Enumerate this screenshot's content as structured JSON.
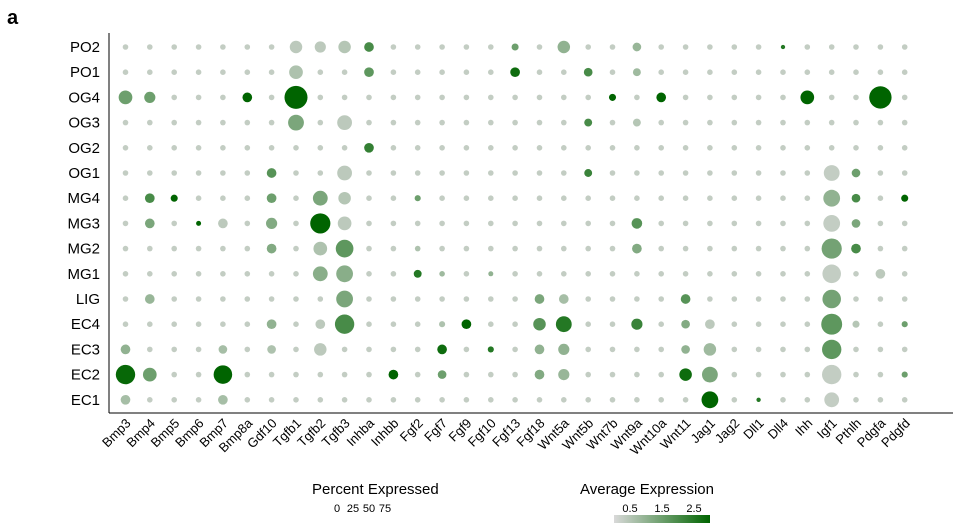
{
  "panel_letter": "a",
  "chart_data": {
    "type": "scatter",
    "kind": "dot-plot",
    "rows": [
      "PO2",
      "PO1",
      "OG4",
      "OG3",
      "OG2",
      "OG1",
      "MG4",
      "MG3",
      "MG2",
      "MG1",
      "LIG",
      "EC4",
      "EC3",
      "EC2",
      "EC1"
    ],
    "columns": [
      "Bmp3",
      "Bmp4",
      "Bmp5",
      "Bmp6",
      "Bmp7",
      "Bmp8a",
      "Gdf10",
      "Tgfb1",
      "Tgfb2",
      "Tgfb3",
      "Inhba",
      "Inhbb",
      "Fgf2",
      "Fgf7",
      "Fgf9",
      "Fgf10",
      "Fgf13",
      "Fgf18",
      "Wnt5a",
      "Wnt5b",
      "Wnt7b",
      "Wnt9a",
      "Wnt10a",
      "Wnt11",
      "Jag1",
      "Jag2",
      "Dll1",
      "Dll4",
      "Ihh",
      "Igf1",
      "Pthlh",
      "Pdgfa",
      "Pdgfd"
    ],
    "size_legend": {
      "title": "Percent Expressed",
      "ticks": [
        0,
        25,
        50,
        75
      ],
      "max": 100
    },
    "color_legend": {
      "title": "Average Expression",
      "ticks": [
        0.5,
        1.5,
        2.5
      ],
      "range": [
        0,
        3
      ],
      "low_color": "#d9d9d9",
      "high_color": "#006400"
    },
    "default_point": {
      "pct": 5,
      "avg": 0.3
    },
    "points": [
      {
        "row": "PO2",
        "col": "Tgfb1",
        "pct": 25,
        "avg": 0.4
      },
      {
        "row": "PO2",
        "col": "Tgfb2",
        "pct": 20,
        "avg": 0.4
      },
      {
        "row": "PO2",
        "col": "Tgfb3",
        "pct": 25,
        "avg": 0.5
      },
      {
        "row": "PO2",
        "col": "Inhba",
        "pct": 15,
        "avg": 2.0
      },
      {
        "row": "PO2",
        "col": "Fgf13",
        "pct": 8,
        "avg": 1.5
      },
      {
        "row": "PO2",
        "col": "Wnt5a",
        "pct": 25,
        "avg": 1.0
      },
      {
        "row": "PO2",
        "col": "Wnt9a",
        "pct": 12,
        "avg": 0.9
      },
      {
        "row": "PO2",
        "col": "Dll4",
        "pct": 3,
        "avg": 2.5
      },
      {
        "row": "PO1",
        "col": "Tgfb1",
        "pct": 30,
        "avg": 0.6
      },
      {
        "row": "PO1",
        "col": "Inhba",
        "pct": 15,
        "avg": 1.7
      },
      {
        "row": "PO1",
        "col": "Fgf13",
        "pct": 15,
        "avg": 2.8
      },
      {
        "row": "PO1",
        "col": "Wnt5b",
        "pct": 12,
        "avg": 2.0
      },
      {
        "row": "PO1",
        "col": "Wnt9a",
        "pct": 10,
        "avg": 0.8
      },
      {
        "row": "OG4",
        "col": "Bmp3",
        "pct": 30,
        "avg": 1.5
      },
      {
        "row": "OG4",
        "col": "Bmp4",
        "pct": 20,
        "avg": 1.5
      },
      {
        "row": "OG4",
        "col": "Bmp8a",
        "pct": 15,
        "avg": 3.0
      },
      {
        "row": "OG4",
        "col": "Tgfb1",
        "pct": 85,
        "avg": 3.0
      },
      {
        "row": "OG4",
        "col": "Wnt7b",
        "pct": 8,
        "avg": 3.0
      },
      {
        "row": "OG4",
        "col": "Wnt10a",
        "pct": 15,
        "avg": 3.0
      },
      {
        "row": "OG4",
        "col": "Ihh",
        "pct": 30,
        "avg": 3.0
      },
      {
        "row": "OG4",
        "col": "Pdgfa",
        "pct": 80,
        "avg": 3.0
      },
      {
        "row": "OG3",
        "col": "Tgfb1",
        "pct": 40,
        "avg": 1.3
      },
      {
        "row": "OG3",
        "col": "Tgfb3",
        "pct": 35,
        "avg": 0.4
      },
      {
        "row": "OG3",
        "col": "Wnt5b",
        "pct": 10,
        "avg": 2.0
      },
      {
        "row": "OG3",
        "col": "Wnt9a",
        "pct": 10,
        "avg": 0.5
      },
      {
        "row": "OG2",
        "col": "Inhba",
        "pct": 15,
        "avg": 2.3
      },
      {
        "row": "OG1",
        "col": "Gdf10",
        "pct": 15,
        "avg": 1.8
      },
      {
        "row": "OG1",
        "col": "Tgfb3",
        "pct": 35,
        "avg": 0.4
      },
      {
        "row": "OG1",
        "col": "Wnt5b",
        "pct": 10,
        "avg": 2.2
      },
      {
        "row": "OG1",
        "col": "Igf1",
        "pct": 40,
        "avg": 0.3
      },
      {
        "row": "OG1",
        "col": "Pthlh",
        "pct": 12,
        "avg": 1.5
      },
      {
        "row": "MG4",
        "col": "Bmp4",
        "pct": 15,
        "avg": 2.0
      },
      {
        "row": "MG4",
        "col": "Bmp5",
        "pct": 8,
        "avg": 3.0
      },
      {
        "row": "MG4",
        "col": "Gdf10",
        "pct": 15,
        "avg": 1.5
      },
      {
        "row": "MG4",
        "col": "Tgfb2",
        "pct": 35,
        "avg": 1.3
      },
      {
        "row": "MG4",
        "col": "Tgfb3",
        "pct": 25,
        "avg": 0.5
      },
      {
        "row": "MG4",
        "col": "Fgf2",
        "pct": 6,
        "avg": 1.5
      },
      {
        "row": "MG4",
        "col": "Igf1",
        "pct": 45,
        "avg": 1.0
      },
      {
        "row": "MG4",
        "col": "Pthlh",
        "pct": 12,
        "avg": 2.0
      },
      {
        "row": "MG4",
        "col": "Pdgfd",
        "pct": 8,
        "avg": 3.0
      },
      {
        "row": "MG3",
        "col": "Bmp4",
        "pct": 15,
        "avg": 1.3
      },
      {
        "row": "MG3",
        "col": "Bmp6",
        "pct": 4,
        "avg": 3.0
      },
      {
        "row": "MG3",
        "col": "Bmp7",
        "pct": 15,
        "avg": 0.4
      },
      {
        "row": "MG3",
        "col": "Gdf10",
        "pct": 20,
        "avg": 1.2
      },
      {
        "row": "MG3",
        "col": "Tgfb2",
        "pct": 65,
        "avg": 3.0
      },
      {
        "row": "MG3",
        "col": "Tgfb3",
        "pct": 30,
        "avg": 0.4
      },
      {
        "row": "MG3",
        "col": "Wnt9a",
        "pct": 18,
        "avg": 1.8
      },
      {
        "row": "MG3",
        "col": "Igf1",
        "pct": 45,
        "avg": 0.3
      },
      {
        "row": "MG3",
        "col": "Pthlh",
        "pct": 12,
        "avg": 1.3
      },
      {
        "row": "MG2",
        "col": "Gdf10",
        "pct": 15,
        "avg": 1.2
      },
      {
        "row": "MG2",
        "col": "Tgfb2",
        "pct": 30,
        "avg": 0.6
      },
      {
        "row": "MG2",
        "col": "Tgfb3",
        "pct": 50,
        "avg": 1.7
      },
      {
        "row": "MG2",
        "col": "Fgf2",
        "pct": 5,
        "avg": 0.6
      },
      {
        "row": "MG2",
        "col": "Wnt9a",
        "pct": 15,
        "avg": 1.2
      },
      {
        "row": "MG2",
        "col": "Igf1",
        "pct": 65,
        "avg": 1.4
      },
      {
        "row": "MG2",
        "col": "Pthlh",
        "pct": 15,
        "avg": 2.0
      },
      {
        "row": "MG1",
        "col": "Tgfb2",
        "pct": 35,
        "avg": 1.1
      },
      {
        "row": "MG1",
        "col": "Tgfb3",
        "pct": 45,
        "avg": 1.1
      },
      {
        "row": "MG1",
        "col": "Fgf2",
        "pct": 10,
        "avg": 2.5
      },
      {
        "row": "MG1",
        "col": "Fgf7",
        "pct": 5,
        "avg": 0.8
      },
      {
        "row": "MG1",
        "col": "Fgf10",
        "pct": 4,
        "avg": 1.0
      },
      {
        "row": "MG1",
        "col": "Igf1",
        "pct": 55,
        "avg": 0.3
      },
      {
        "row": "MG1",
        "col": "Pdgfa",
        "pct": 15,
        "avg": 0.4
      },
      {
        "row": "LIG",
        "col": "Bmp4",
        "pct": 15,
        "avg": 0.9
      },
      {
        "row": "LIG",
        "col": "Tgfb3",
        "pct": 45,
        "avg": 1.3
      },
      {
        "row": "LIG",
        "col": "Fgf18",
        "pct": 15,
        "avg": 1.3
      },
      {
        "row": "LIG",
        "col": "Wnt5a",
        "pct": 15,
        "avg": 0.7
      },
      {
        "row": "LIG",
        "col": "Wnt11",
        "pct": 15,
        "avg": 1.8
      },
      {
        "row": "LIG",
        "col": "Igf1",
        "pct": 55,
        "avg": 1.4
      },
      {
        "row": "EC4",
        "col": "Gdf10",
        "pct": 15,
        "avg": 1.0
      },
      {
        "row": "EC4",
        "col": "Tgfb2",
        "pct": 15,
        "avg": 0.4
      },
      {
        "row": "EC4",
        "col": "Tgfb3",
        "pct": 60,
        "avg": 2.0
      },
      {
        "row": "EC4",
        "col": "Fgf7",
        "pct": 6,
        "avg": 0.6
      },
      {
        "row": "EC4",
        "col": "Fgf9",
        "pct": 15,
        "avg": 3.0
      },
      {
        "row": "EC4",
        "col": "Fgf18",
        "pct": 25,
        "avg": 1.8
      },
      {
        "row": "EC4",
        "col": "Wnt5a",
        "pct": 40,
        "avg": 2.5
      },
      {
        "row": "EC4",
        "col": "Wnt9a",
        "pct": 20,
        "avg": 2.2
      },
      {
        "row": "EC4",
        "col": "Wnt11",
        "pct": 12,
        "avg": 1.2
      },
      {
        "row": "EC4",
        "col": "Jag1",
        "pct": 15,
        "avg": 0.4
      },
      {
        "row": "EC4",
        "col": "Igf1",
        "pct": 70,
        "avg": 1.7
      },
      {
        "row": "EC4",
        "col": "Pthlh",
        "pct": 8,
        "avg": 0.5
      },
      {
        "row": "EC4",
        "col": "Pdgfd",
        "pct": 6,
        "avg": 1.5
      },
      {
        "row": "EC3",
        "col": "Bmp3",
        "pct": 15,
        "avg": 1.0
      },
      {
        "row": "EC3",
        "col": "Bmp7",
        "pct": 12,
        "avg": 0.7
      },
      {
        "row": "EC3",
        "col": "Gdf10",
        "pct": 12,
        "avg": 0.6
      },
      {
        "row": "EC3",
        "col": "Tgfb2",
        "pct": 25,
        "avg": 0.4
      },
      {
        "row": "EC3",
        "col": "Fgf7",
        "pct": 15,
        "avg": 2.8
      },
      {
        "row": "EC3",
        "col": "Fgf10",
        "pct": 6,
        "avg": 2.5
      },
      {
        "row": "EC3",
        "col": "Fgf18",
        "pct": 15,
        "avg": 1.0
      },
      {
        "row": "EC3",
        "col": "Wnt5a",
        "pct": 20,
        "avg": 1.0
      },
      {
        "row": "EC3",
        "col": "Wnt11",
        "pct": 12,
        "avg": 1.0
      },
      {
        "row": "EC3",
        "col": "Jag1",
        "pct": 25,
        "avg": 0.8
      },
      {
        "row": "EC3",
        "col": "Igf1",
        "pct": 60,
        "avg": 1.7
      },
      {
        "row": "EC2",
        "col": "Bmp3",
        "pct": 60,
        "avg": 2.9
      },
      {
        "row": "EC2",
        "col": "Bmp4",
        "pct": 30,
        "avg": 1.5
      },
      {
        "row": "EC2",
        "col": "Bmp7",
        "pct": 55,
        "avg": 3.0
      },
      {
        "row": "EC2",
        "col": "Inhbb",
        "pct": 15,
        "avg": 3.0
      },
      {
        "row": "EC2",
        "col": "Fgf7",
        "pct": 12,
        "avg": 1.5
      },
      {
        "row": "EC2",
        "col": "Fgf18",
        "pct": 15,
        "avg": 1.2
      },
      {
        "row": "EC2",
        "col": "Wnt5a",
        "pct": 20,
        "avg": 0.9
      },
      {
        "row": "EC2",
        "col": "Wnt11",
        "pct": 25,
        "avg": 2.8
      },
      {
        "row": "EC2",
        "col": "Jag1",
        "pct": 40,
        "avg": 1.3
      },
      {
        "row": "EC2",
        "col": "Igf1",
        "pct": 60,
        "avg": 0.3
      },
      {
        "row": "EC2",
        "col": "Pdgfd",
        "pct": 6,
        "avg": 1.5
      },
      {
        "row": "EC1",
        "col": "Bmp3",
        "pct": 15,
        "avg": 0.7
      },
      {
        "row": "EC1",
        "col": "Bmp7",
        "pct": 15,
        "avg": 0.7
      },
      {
        "row": "EC1",
        "col": "Jag1",
        "pct": 45,
        "avg": 3.0
      },
      {
        "row": "EC1",
        "col": "Dll1",
        "pct": 3,
        "avg": 2.5
      },
      {
        "row": "EC1",
        "col": "Igf1",
        "pct": 35,
        "avg": 0.3
      }
    ]
  }
}
